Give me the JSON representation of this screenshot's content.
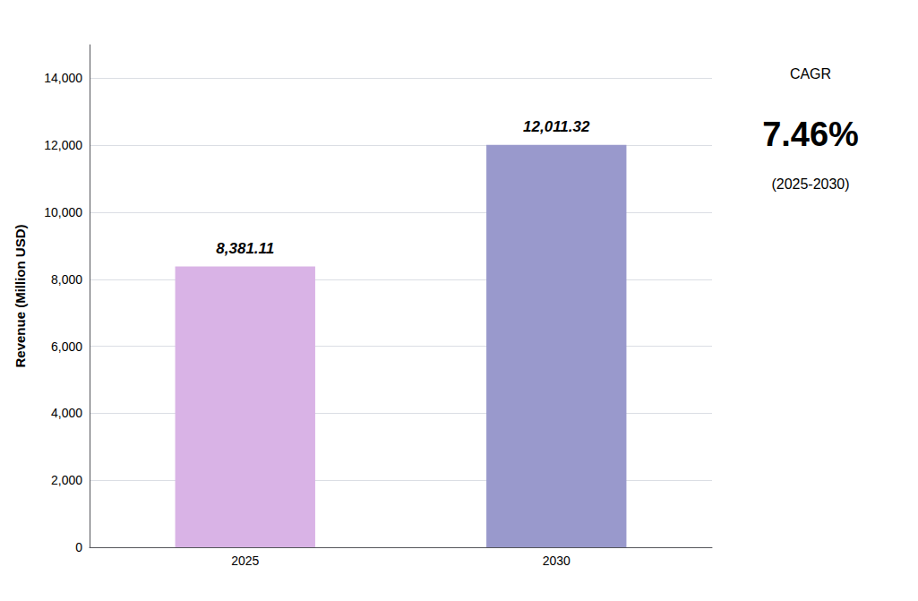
{
  "chart_data": {
    "type": "bar",
    "categories": [
      "2025",
      "2030"
    ],
    "values": [
      8381.11,
      12011.32
    ],
    "value_labels": [
      "8,381.11",
      "12,011.32"
    ],
    "data_labels": true,
    "colors": [
      "#d9b3e6",
      "#9999cc"
    ],
    "ylabel": "Revenue (Million USD)",
    "ylim": [
      0,
      15000
    ],
    "yticks": [
      0,
      {
        "value": 2000,
        "label": "2,000"
      },
      {
        "value": 4000,
        "label": "4,000"
      },
      {
        "value": 6000,
        "label": "6,000"
      },
      {
        "value": 8000,
        "label": "8,000"
      },
      {
        "value": 10000,
        "label": "10,000"
      },
      {
        "value": 12000,
        "label": "12,000"
      },
      {
        "value": 14000,
        "label": "14,000"
      }
    ],
    "annotations": [
      "CAGR",
      "7.46%",
      "(2025-2030)"
    ],
    "grid": true
  }
}
